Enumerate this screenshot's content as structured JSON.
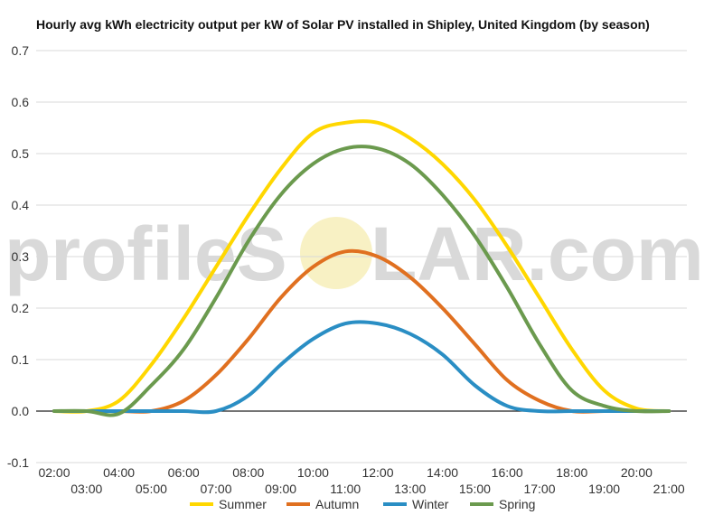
{
  "chart_data": {
    "type": "line",
    "title": "Hourly avg kWh electricity output per kW of Solar PV installed in Shipley, United Kingdom (by season)",
    "xlabel": "",
    "ylabel": "",
    "ylim": [
      -0.1,
      0.7
    ],
    "yticks": [
      "-0.1",
      "0.0",
      "0.1",
      "0.2",
      "0.3",
      "0.4",
      "0.5",
      "0.6",
      "0.7"
    ],
    "x": [
      "02:00",
      "03:00",
      "04:00",
      "05:00",
      "06:00",
      "07:00",
      "08:00",
      "09:00",
      "10:00",
      "11:00",
      "12:00",
      "13:00",
      "14:00",
      "15:00",
      "16:00",
      "17:00",
      "18:00",
      "19:00",
      "20:00",
      "21:00"
    ],
    "grid": true,
    "legend_position": "bottom",
    "series": [
      {
        "name": "Summer",
        "color": "#ffd700",
        "values": [
          0,
          0,
          0.02,
          0.09,
          0.18,
          0.28,
          0.38,
          0.47,
          0.54,
          0.56,
          0.56,
          0.53,
          0.48,
          0.41,
          0.32,
          0.22,
          0.12,
          0.04,
          0.005,
          0
        ]
      },
      {
        "name": "Autumn",
        "color": "#e07020",
        "values": [
          0,
          0,
          0,
          0,
          0.02,
          0.07,
          0.14,
          0.22,
          0.28,
          0.31,
          0.3,
          0.26,
          0.2,
          0.13,
          0.06,
          0.02,
          0,
          0,
          0,
          0
        ]
      },
      {
        "name": "Winter",
        "color": "#2a8ec4",
        "values": [
          0,
          0,
          0,
          0,
          0,
          0,
          0.03,
          0.09,
          0.14,
          0.17,
          0.17,
          0.15,
          0.11,
          0.05,
          0.01,
          0,
          0,
          0,
          0,
          0
        ]
      },
      {
        "name": "Spring",
        "color": "#6b9a4e",
        "values": [
          0,
          0,
          -0.005,
          0.05,
          0.12,
          0.22,
          0.33,
          0.42,
          0.48,
          0.51,
          0.51,
          0.48,
          0.42,
          0.34,
          0.24,
          0.13,
          0.04,
          0.01,
          0,
          0
        ]
      }
    ]
  },
  "watermark": {
    "text_left": "profileS",
    "text_right": "LAR.com",
    "sun_color": "#f5ecb0"
  }
}
